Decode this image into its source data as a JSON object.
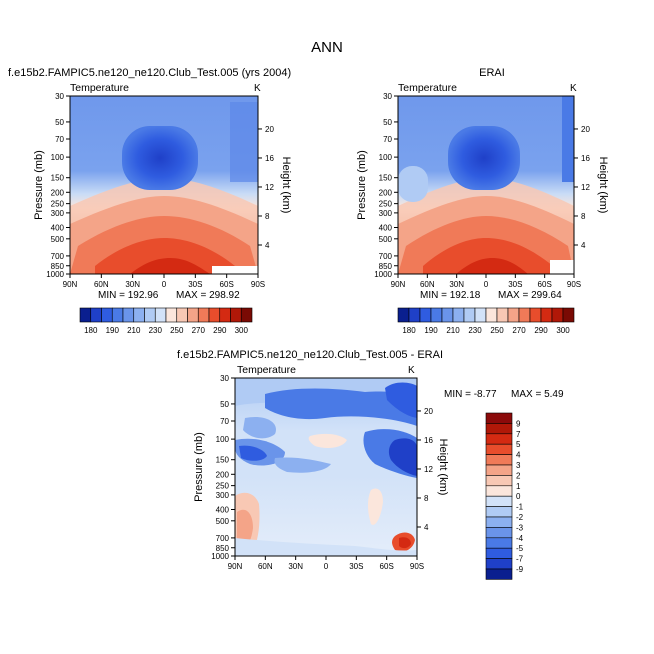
{
  "figure": {
    "title": "ANN"
  },
  "chart_data": [
    {
      "type": "heatmap",
      "name": "model",
      "title": "f.e15b2.FAMPIC5.ne120_ne120.Club_Test.005 (yrs 2004)",
      "subtitle": "Temperature",
      "units": "K",
      "xlabel": "",
      "ylabel": "Pressure (mb)",
      "y2label": "Height (km)",
      "xticks": [
        "90N",
        "60N",
        "30N",
        "0",
        "30S",
        "60S",
        "90S"
      ],
      "yticks": [
        "30",
        "50",
        "70",
        "100",
        "150",
        "200",
        "250",
        "300",
        "400",
        "500",
        "700",
        "850",
        "1000"
      ],
      "y2ticks": [
        "20",
        "16",
        "12",
        "8",
        "4"
      ],
      "min_label": "MIN = 192.96",
      "max_label": "MAX = 298.92",
      "min": 192.96,
      "max": 298.92,
      "colorbar_levels": [
        "180",
        "190",
        "210",
        "230",
        "250",
        "270",
        "290",
        "300"
      ]
    },
    {
      "type": "heatmap",
      "name": "obs",
      "title": "ERAI",
      "subtitle": "Temperature",
      "units": "K",
      "xlabel": "",
      "ylabel": "Pressure (mb)",
      "y2label": "Height (km)",
      "xticks": [
        "90N",
        "60N",
        "30N",
        "0",
        "30S",
        "60S",
        "90S"
      ],
      "yticks": [
        "30",
        "50",
        "70",
        "100",
        "150",
        "200",
        "250",
        "300",
        "400",
        "500",
        "700",
        "850",
        "1000"
      ],
      "y2ticks": [
        "20",
        "16",
        "12",
        "8",
        "4"
      ],
      "min_label": "MIN = 192.18",
      "max_label": "MAX = 299.64",
      "min": 192.18,
      "max": 299.64,
      "colorbar_levels": [
        "180",
        "190",
        "210",
        "230",
        "250",
        "270",
        "290",
        "300"
      ]
    },
    {
      "type": "heatmap",
      "name": "difference",
      "title": "f.e15b2.FAMPIC5.ne120_ne120.Club_Test.005 - ERAI",
      "subtitle": "Temperature",
      "units": "K",
      "xlabel": "",
      "ylabel": "Pressure (mb)",
      "y2label": "Height (km)",
      "xticks": [
        "90N",
        "60N",
        "30N",
        "0",
        "30S",
        "60S",
        "90S"
      ],
      "yticks": [
        "30",
        "50",
        "70",
        "100",
        "150",
        "200",
        "250",
        "300",
        "400",
        "500",
        "700",
        "850",
        "1000"
      ],
      "y2ticks": [
        "20",
        "16",
        "12",
        "8",
        "4"
      ],
      "min_label": "MIN = -8.77",
      "max_label": "MAX =    5.49",
      "min": -8.77,
      "max": 5.49,
      "colorbar_levels": [
        "9",
        "7",
        "5",
        "4",
        "3",
        "2",
        "1",
        "0",
        "-1",
        "-2",
        "-3",
        "-4",
        "-5",
        "-7",
        "-9"
      ]
    }
  ],
  "colors": {
    "abs_scale": [
      "#0a1f8f",
      "#1f40c8",
      "#2f5ce0",
      "#4a7ae6",
      "#6a94ea",
      "#8cb0f0",
      "#b0cbf4",
      "#d2e2f8",
      "#fbe6dc",
      "#f8c8b4",
      "#f4a488",
      "#f07a58",
      "#e84d2c",
      "#d42a12",
      "#b01808",
      "#7a0a04"
    ],
    "diff_scale": [
      "#8b0a0a",
      "#b01808",
      "#d42a12",
      "#e84d2c",
      "#f07a58",
      "#f4a488",
      "#f8c8b4",
      "#fbe6dc",
      "#d2e2f8",
      "#b0cbf4",
      "#8cb0f0",
      "#6a94ea",
      "#4a7ae6",
      "#2f5ce0",
      "#1f40c8",
      "#0a1f8f"
    ]
  }
}
